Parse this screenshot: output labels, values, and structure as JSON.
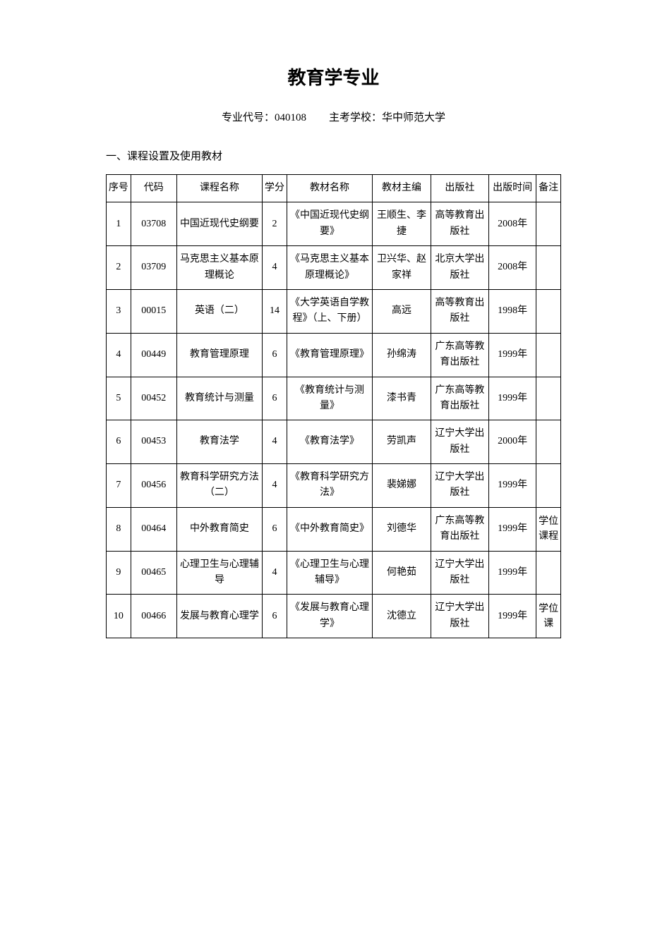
{
  "header": {
    "title": "教育学专业",
    "major_code_label": "专业代号：",
    "major_code": "040108",
    "school_label": "主考学校：",
    "school_name": "华中师范大学"
  },
  "section": {
    "heading": "一、课程设置及使用教材"
  },
  "table": {
    "columns": {
      "seq": "序号",
      "code": "代码",
      "course": "课程名称",
      "credit": "学分",
      "textbook": "教材名称",
      "editor": "教材主编",
      "publisher": "出版社",
      "pubdate": "出版时间",
      "note": "备注"
    },
    "rows": [
      {
        "seq": "1",
        "code": "03708",
        "course": "中国近现代史纲要",
        "credit": "2",
        "textbook": "《中国近现代史纲要》",
        "editor": "王顺生、李捷",
        "publisher": "高等教育出版社",
        "pubdate": "2008年",
        "note": ""
      },
      {
        "seq": "2",
        "code": "03709",
        "course": "马克思主义基本原理概论",
        "credit": "4",
        "textbook": "《马克思主义基本原理概论》",
        "editor": "卫兴华、赵家祥",
        "publisher": "北京大学出版社",
        "pubdate": "2008年",
        "note": ""
      },
      {
        "seq": "3",
        "code": "00015",
        "course": "英语（二）",
        "credit": "14",
        "textbook": "《大学英语自学教程》（上、下册）",
        "editor": "高远",
        "publisher": "高等教育出版社",
        "pubdate": "1998年",
        "note": ""
      },
      {
        "seq": "4",
        "code": "00449",
        "course": "教育管理原理",
        "credit": "6",
        "textbook": "《教育管理原理》",
        "editor": "孙绵涛",
        "publisher": "广东高等教育出版社",
        "pubdate": "1999年",
        "note": ""
      },
      {
        "seq": "5",
        "code": "00452",
        "course": "教育统计与测量",
        "credit": "6",
        "textbook": "《教育统计与测量》",
        "editor": "漆书青",
        "publisher": "广东高等教育出版社",
        "pubdate": "1999年",
        "note": ""
      },
      {
        "seq": "6",
        "code": "00453",
        "course": "教育法学",
        "credit": "4",
        "textbook": "《教育法学》",
        "editor": "劳凯声",
        "publisher": "辽宁大学出版社",
        "pubdate": "2000年",
        "note": ""
      },
      {
        "seq": "7",
        "code": "00456",
        "course": "教育科学研究方法（二）",
        "credit": "4",
        "textbook": "《教育科学研究方法》",
        "editor": "裴娣娜",
        "publisher": "辽宁大学出版社",
        "pubdate": "1999年",
        "note": ""
      },
      {
        "seq": "8",
        "code": "00464",
        "course": "中外教育简史",
        "credit": "6",
        "textbook": "《中外教育简史》",
        "editor": "刘德华",
        "publisher": "广东高等教育出版社",
        "pubdate": "1999年",
        "note": "学位课程"
      },
      {
        "seq": "9",
        "code": "00465",
        "course": "心理卫生与心理辅导",
        "credit": "4",
        "textbook": "《心理卫生与心理辅导》",
        "editor": "何艳茹",
        "publisher": "辽宁大学出版社",
        "pubdate": "1999年",
        "note": ""
      },
      {
        "seq": "10",
        "code": "00466",
        "course": "发展与教育心理学",
        "credit": "6",
        "textbook": "《发展与教育心理学》",
        "editor": "沈德立",
        "publisher": "辽宁大学出版社",
        "pubdate": "1999年",
        "note": "学位课"
      }
    ]
  },
  "styles": {
    "background_color": "#ffffff",
    "text_color": "#000000",
    "border_color": "#000000",
    "title_fontsize": 26,
    "body_fontsize": 14,
    "subtitle_fontsize": 15,
    "font_family": "SimSun"
  }
}
